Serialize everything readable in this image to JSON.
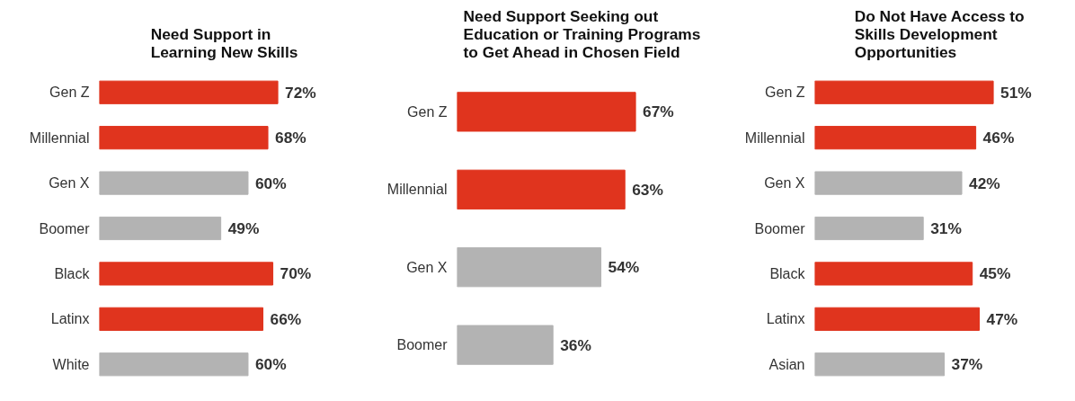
{
  "chart_data": [
    {
      "type": "bar",
      "orientation": "horizontal",
      "title": "Need Support in\nLearning New Skills",
      "categories": [
        "Gen Z",
        "Millennial",
        "Gen X",
        "Boomer",
        "Black",
        "Latinx",
        "White"
      ],
      "values": [
        72,
        68,
        60,
        49,
        70,
        66,
        60
      ],
      "colors": [
        "#e0341e",
        "#e0341e",
        "#b3b3b3",
        "#b3b3b3",
        "#e0341e",
        "#e0341e",
        "#b3b3b3"
      ],
      "value_labels": [
        "72%",
        "68%",
        "60%",
        "49%",
        "70%",
        "66%",
        "60%"
      ],
      "tick_labels": "y",
      "grid": false
    },
    {
      "type": "bar",
      "orientation": "horizontal",
      "title": "Need Support Seeking out\nEducation or Training Programs\nto Get Ahead in Chosen Field",
      "categories": [
        "Gen Z",
        "Millennial",
        "Gen X",
        "Boomer"
      ],
      "values": [
        67,
        63,
        54,
        36
      ],
      "colors": [
        "#e0341e",
        "#e0341e",
        "#b3b3b3",
        "#b3b3b3"
      ],
      "value_labels": [
        "67%",
        "63%",
        "54%",
        "36%"
      ],
      "tick_labels": "y",
      "grid": false
    },
    {
      "type": "bar",
      "orientation": "horizontal",
      "title": "Do Not Have Access to\nSkills Development\nOpportunities",
      "categories": [
        "Gen Z",
        "Millennial",
        "Gen X",
        "Boomer",
        "Black",
        "Latinx",
        "Asian"
      ],
      "values": [
        51,
        46,
        42,
        31,
        45,
        47,
        37
      ],
      "colors": [
        "#e0341e",
        "#e0341e",
        "#b3b3b3",
        "#b3b3b3",
        "#e0341e",
        "#e0341e",
        "#b3b3b3"
      ],
      "value_labels": [
        "51%",
        "46%",
        "42%",
        "31%",
        "45%",
        "47%",
        "37%"
      ],
      "tick_labels": "y",
      "grid": false
    }
  ]
}
